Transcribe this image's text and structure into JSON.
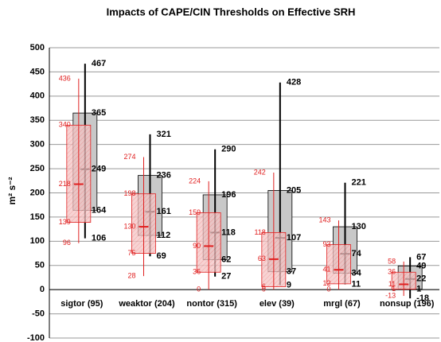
{
  "chart_data": {
    "type": "box",
    "title": "Impacts of CAPE/CIN Thresholds on Effective SRH",
    "y_label": "m² s⁻²",
    "categories": [
      "sigtor (95)",
      "weaktor (204)",
      "nontor (315)",
      "elev (39)",
      "mrgl (67)",
      "nonsup (196)"
    ],
    "ylim": [
      -100,
      500
    ],
    "yticks": [
      -100,
      -50,
      0,
      50,
      100,
      150,
      200,
      250,
      300,
      350,
      400,
      450,
      500
    ],
    "grid": true,
    "series": [
      {
        "color": "#000000",
        "fill": "#c8c8c8",
        "whisker_high": [
          467,
          321,
          290,
          428,
          221,
          67
        ],
        "q3": [
          365,
          236,
          196,
          205,
          130,
          49
        ],
        "median": [
          249,
          161,
          118,
          107,
          74,
          22
        ],
        "q1": [
          164,
          112,
          62,
          37,
          34,
          1
        ],
        "whisker_low": [
          106,
          69,
          27,
          9,
          11,
          -18
        ]
      },
      {
        "color": "#e02020",
        "fill": "#f2b8b8",
        "whisker_high": [
          436,
          274,
          224,
          242,
          143,
          58
        ],
        "q3": [
          340,
          198,
          159,
          118,
          93,
          36
        ],
        "median": [
          218,
          130,
          90,
          63,
          41,
          11
        ],
        "q1": [
          139,
          75,
          36,
          6,
          12,
          1
        ],
        "whisker_low": [
          96,
          28,
          0,
          0,
          0,
          -13
        ]
      }
    ]
  }
}
